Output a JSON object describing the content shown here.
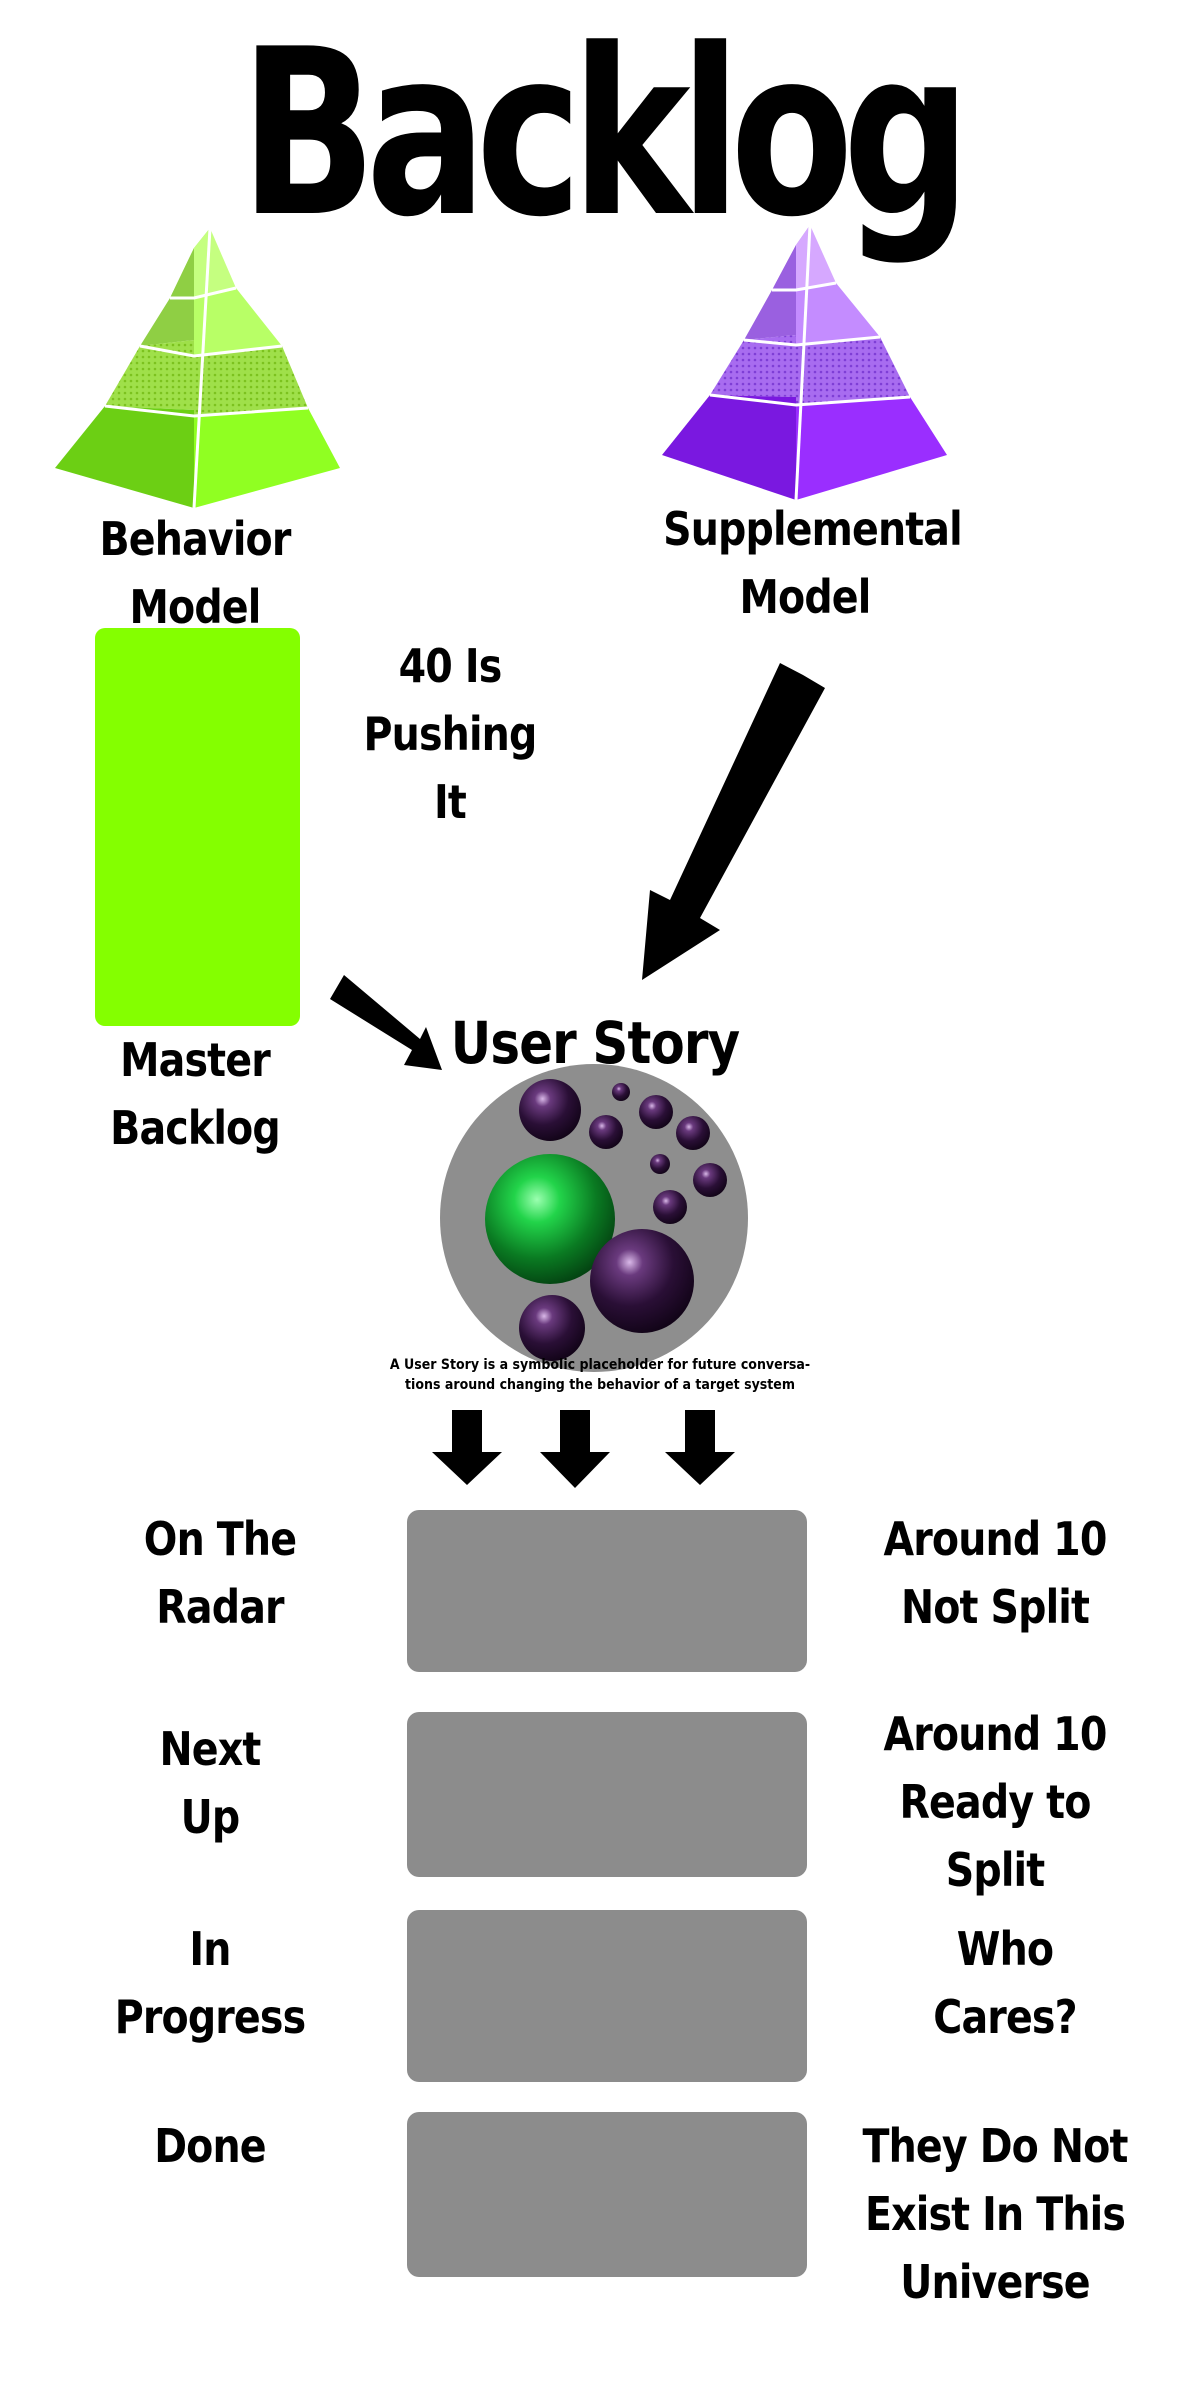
{
  "title": "Backlog",
  "models": {
    "behavior": "Behavior\nModel",
    "supplemental": "Supplemental\nModel"
  },
  "master_backlog": {
    "label": "Master\nBacklog",
    "limit": "40 Is\nPushing It",
    "color": "#84ff00"
  },
  "user_story": {
    "title": "User Story",
    "caption_line1": "A User Story is a symbolic placeholder for future conversa-",
    "caption_line2": "tions around changing the behavior of a target system"
  },
  "stages": [
    {
      "name": "On The\nRadar",
      "note": "Around 10\nNot Split"
    },
    {
      "name": "Next\nUp",
      "note": "Around 10\nReady to Split"
    },
    {
      "name": "In\nProgress",
      "note": "Who\nCares?"
    },
    {
      "name": "Done",
      "note": "They Do Not\nExist In This\nUniverse"
    }
  ],
  "colors": {
    "green_pyramid": "#7ce01a",
    "purple_pyramid": "#8a22f0",
    "stage_box": "#8c8c8c",
    "story_circle": "#8e8e8e"
  }
}
